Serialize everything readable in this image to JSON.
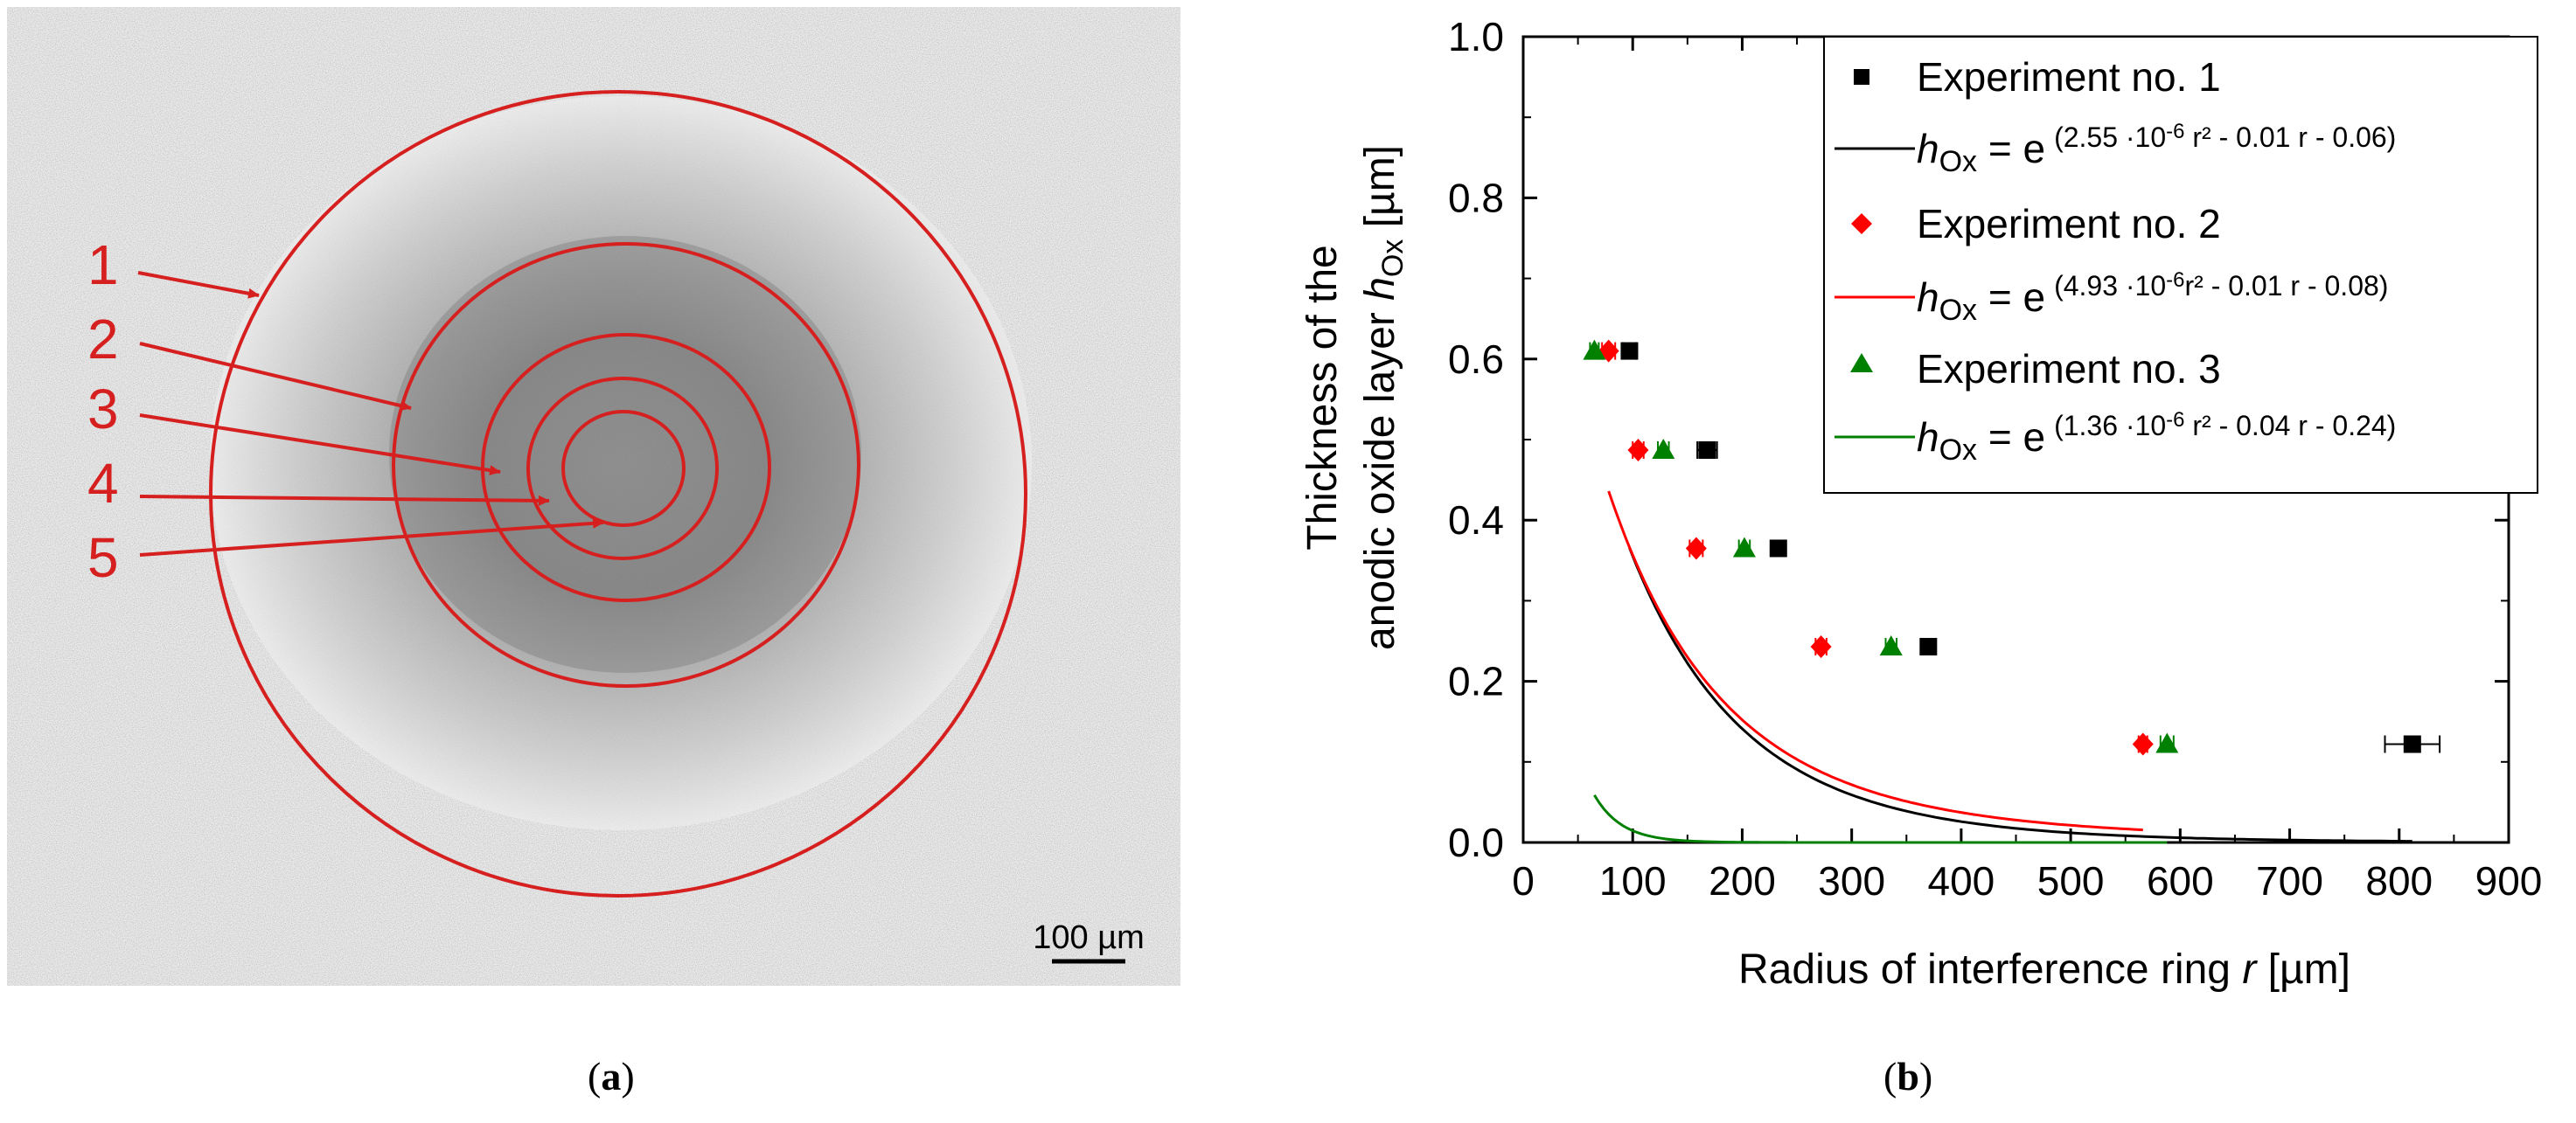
{
  "panel_a": {
    "ring_labels": [
      "1",
      "2",
      "3",
      "4",
      "5"
    ],
    "scale_bar_label": "100 µm",
    "colors": {
      "ring": "#d62020",
      "background": "#ececec",
      "specimen": "#9a9a9a"
    }
  },
  "captions": {
    "a": "a",
    "b": "b"
  },
  "chart_data": {
    "type": "scatter",
    "title": "",
    "xlabel": {
      "text": "Radius of interference ring ",
      "var": "r",
      "unit": " [µm]"
    },
    "ylabel": {
      "line1": "Thickness of the",
      "line2": "anodic oxide layer ",
      "var": "h",
      "sub": "Ox",
      "unit": " [µm]"
    },
    "xlim": [
      0,
      900
    ],
    "ylim": [
      0,
      1.0
    ],
    "xticks": [
      0,
      100,
      200,
      300,
      400,
      500,
      600,
      700,
      800,
      900
    ],
    "yticks": [
      0.0,
      0.2,
      0.4,
      0.6,
      0.8,
      1.0
    ],
    "xtick_labels": [
      "0",
      "100",
      "200",
      "300",
      "400",
      "500",
      "600",
      "700",
      "800",
      "900"
    ],
    "ytick_labels": [
      "0.0",
      "0.2",
      "0.4",
      "0.6",
      "0.8",
      "1.0"
    ],
    "legend_position": "top-right",
    "series": [
      {
        "name": "Experiment no. 1",
        "marker": "square",
        "color": "#000000",
        "x": [
          97,
          168,
          233,
          370,
          812
        ],
        "y": [
          0.61,
          0.487,
          0.365,
          0.243,
          0.122
        ],
        "xerr": [
          6,
          9,
          5,
          6,
          25
        ],
        "fit_label": {
          "var": "h",
          "sub": "Ox",
          "eq": " = e",
          "exp": "(2.55 ·10",
          "exp_pow": "-6",
          "exp_rest": " r² - 0.01 r - 0.06)"
        },
        "fit": {
          "a": 2.55e-06,
          "b": -0.01,
          "c": -0.06,
          "xrange": [
            97,
            812
          ]
        }
      },
      {
        "name": "Experiment no. 2",
        "marker": "diamond",
        "color": "#ff0000",
        "x": [
          78,
          105,
          158,
          272,
          566
        ],
        "y": [
          0.61,
          0.487,
          0.365,
          0.243,
          0.122
        ],
        "xerr": [
          6,
          5,
          6,
          5,
          4
        ],
        "fit_label": {
          "var": "h",
          "sub": "Ox",
          "eq": " = e",
          "exp": "(4.93 ·10",
          "exp_pow": "-6",
          "exp_rest": "r² - 0.01 r - 0.08)"
        },
        "fit": {
          "a": 4.93e-06,
          "b": -0.01,
          "c": -0.08,
          "xrange": [
            78,
            566
          ]
        }
      },
      {
        "name": "Experiment no. 3",
        "marker": "triangle",
        "color": "#008000",
        "x": [
          65,
          128,
          202,
          336,
          588
        ],
        "y": [
          0.61,
          0.487,
          0.365,
          0.243,
          0.122
        ],
        "xerr": [
          4,
          5,
          5,
          5,
          6
        ],
        "fit_label": {
          "var": "h",
          "sub": "Ox",
          "eq": " = e",
          "exp": "(1.36 ·10",
          "exp_pow": "-6",
          "exp_rest": " r² - 0.04 r - 0.24)"
        },
        "fit": {
          "a": 1.36e-06,
          "b": -0.04,
          "c": -0.24,
          "xrange": [
            65,
            588
          ]
        }
      }
    ]
  }
}
